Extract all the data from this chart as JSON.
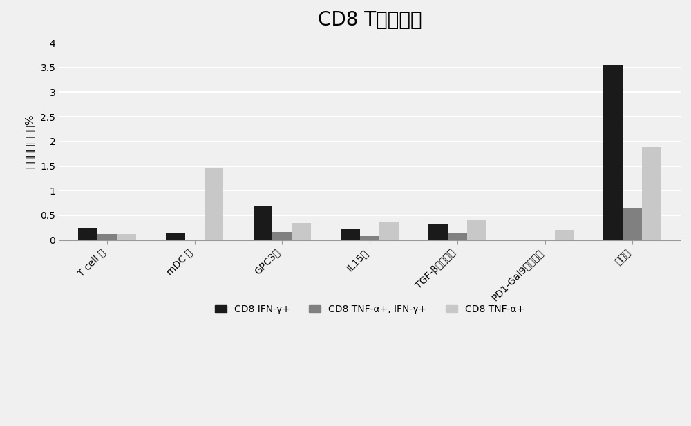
{
  "title": "CD8 T细胞应答",
  "ylabel": "阳性细胞比例，%",
  "categories": [
    "T cell 组",
    "mDC 组",
    "GPC3组",
    "IL15组",
    "TGF-β调节肽组",
    "PD1-Gal9结合肽组",
    "实验组"
  ],
  "series": {
    "CD8 IFN-γ+": {
      "values": [
        0.25,
        0.13,
        0.68,
        0.22,
        0.33,
        0.0,
        3.55
      ],
      "color": "#1a1a1a"
    },
    "CD8 TNF-α+, IFN-γ+": {
      "values": [
        0.12,
        0.0,
        0.17,
        0.08,
        0.14,
        0.0,
        0.65
      ],
      "color": "#808080"
    },
    "CD8 TNF-α+": {
      "values": [
        0.12,
        1.45,
        0.35,
        0.38,
        0.42,
        0.2,
        1.88
      ],
      "color": "#c8c8c8"
    }
  },
  "ylim": [
    0,
    4
  ],
  "yticks": [
    0,
    0.5,
    1,
    1.5,
    2,
    2.5,
    3,
    3.5,
    4
  ],
  "bar_width": 0.22,
  "legend_labels": [
    "CD8 IFN-γ+",
    "CD8 TNF-α+, IFN-γ+",
    "CD8 TNF-α+"
  ],
  "legend_colors": [
    "#1a1a1a",
    "#808080",
    "#c8c8c8"
  ],
  "background_color": "#f0f0f0",
  "plot_bg_color": "#f0f0f0",
  "title_fontsize": 20,
  "axis_fontsize": 11,
  "tick_fontsize": 10,
  "legend_fontsize": 10,
  "grid_color": "#ffffff",
  "grid_linewidth": 1.5
}
